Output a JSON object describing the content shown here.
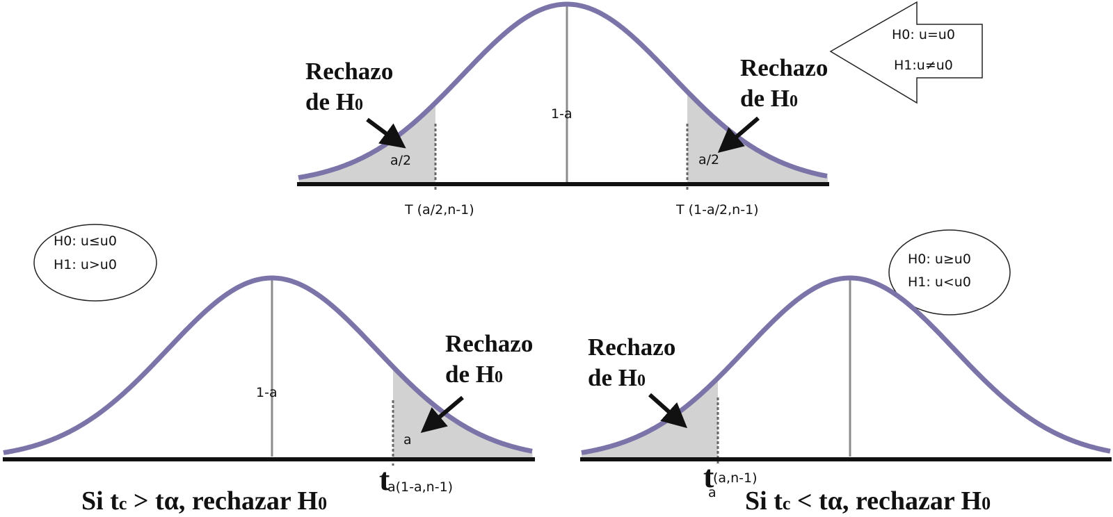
{
  "colors": {
    "curve": "#7b74a8",
    "axis": "#111111",
    "shade": "#d2d2d2",
    "midline": "#8c8c8c"
  },
  "top": {
    "arrow_box": {
      "h0": "H0: u=u0",
      "h1": "H1:u≠u0"
    },
    "reject_left": {
      "line1": "Rechazo",
      "line2": "de H",
      "sub": "0"
    },
    "reject_right": {
      "line1": "Rechazo",
      "line2": "de H",
      "sub": "0"
    },
    "center_label": "1-a",
    "tail_left_label": "a/2",
    "tail_right_label": "a/2",
    "crit_left": "T (a/2,n-1)",
    "crit_right": "T (1-a/2,n-1)"
  },
  "bottom_left": {
    "hyp_box": {
      "h0": "H0: u≤u0",
      "h1": "H1: u>u0"
    },
    "reject": {
      "line1": "Rechazo",
      "line2": "de H",
      "sub": "0"
    },
    "center_label": "1-a",
    "tail_label": "a",
    "crit_main": "t",
    "crit_sub": "a(1-a,n-1)",
    "rule": {
      "pre": "Si t",
      "sub1": "c",
      "mid": " > tα, rechazar H",
      "sub2": "0"
    }
  },
  "bottom_right": {
    "hyp_box": {
      "h0": "H0: u≥u0",
      "h1": "H1: u<u0"
    },
    "reject": {
      "line1": "Rechazo",
      "line2": "de H",
      "sub": "0"
    },
    "crit_main": "t",
    "crit_sub_below": "a",
    "crit_sub_right": "(a,n-1)",
    "rule": {
      "pre": "Si t",
      "sub1": "c",
      "mid": " <  tα, rechazar H",
      "sub2": "0"
    }
  }
}
